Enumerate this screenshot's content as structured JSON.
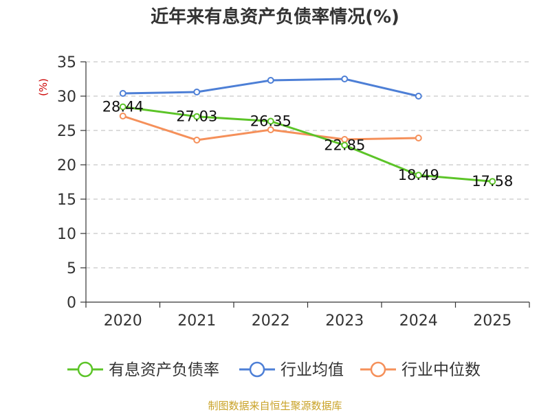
{
  "chart_data": {
    "type": "line",
    "title": "近年来有息资产负债率情况(%)",
    "ylabel": "(%)",
    "xlabel": "",
    "categories": [
      "2020",
      "2021",
      "2022",
      "2023",
      "2024",
      "2025"
    ],
    "ylim": [
      0,
      35
    ],
    "yticks": [
      0,
      5,
      10,
      15,
      20,
      25,
      30,
      35
    ],
    "grid": true,
    "legend_position": "bottom",
    "series": [
      {
        "name": "有息资产负债率",
        "color": "#5cc428",
        "values": [
          28.44,
          27.03,
          26.35,
          22.85,
          18.49,
          17.58
        ],
        "labels": [
          "28.44",
          "27.03",
          "26.35",
          "22.85",
          "18.49",
          "17.58"
        ]
      },
      {
        "name": "行业均值",
        "color": "#4d7fd6",
        "values": [
          30.4,
          30.6,
          32.3,
          32.5,
          30.0,
          null
        ]
      },
      {
        "name": "行业中位数",
        "color": "#f5905a",
        "values": [
          27.1,
          23.6,
          25.1,
          23.7,
          23.9,
          null
        ]
      }
    ]
  },
  "source_text": "制图数据来自恒生聚源数据库"
}
